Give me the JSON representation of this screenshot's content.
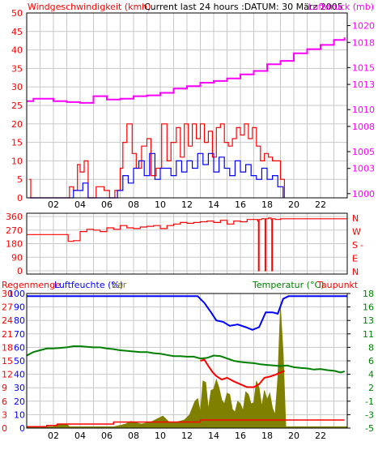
{
  "colors": {
    "frame": "#000000",
    "grid": "#c8c8c8",
    "wind_red": "#ff0000",
    "wind_blue": "#0000ff",
    "pressure": "#ff00ff",
    "direction": "#ff0000",
    "humidity": "#0000ff",
    "temperature": "#008000",
    "dewpoint": "#ff0000",
    "rain": "#808000",
    "rain_total": "#ff0000",
    "label_green": "#008000"
  },
  "chart_data": [
    {
      "type": "line",
      "title": "Current last 24 hours :DATUM: 30 März 2005",
      "left_label": "Windgeschwindigkeit (kmh)",
      "right_label": "Luftdruck (mb)",
      "x_ticks": [
        "02",
        "04",
        "06",
        "08",
        "10",
        "12",
        "14",
        "16",
        "18",
        "20",
        "22"
      ],
      "x_range": [
        0,
        24
      ],
      "y_left_range": [
        0,
        50
      ],
      "y_left_ticks": [
        "0",
        "5",
        "10",
        "15",
        "20",
        "25",
        "30",
        "35",
        "40",
        "45",
        "50"
      ],
      "y_right_range": [
        999.5,
        1021.5
      ],
      "y_right_ticks": [
        "1000",
        "1003",
        "1005",
        "1008",
        "1010",
        "1013",
        "1015",
        "1018",
        "1020"
      ],
      "series": [
        {
          "kind": "wind_gust",
          "x": [
            0.2,
            0.3,
            0.5,
            2.8,
            3.2,
            3.5,
            3.8,
            4.0,
            4.3,
            4.6,
            5.2,
            5.8,
            6.2,
            6.6,
            7.0,
            7.2,
            7.5,
            7.9,
            8.2,
            8.6,
            9.0,
            9.3,
            9.7,
            10.1,
            10.5,
            10.8,
            11.2,
            11.5,
            11.8,
            12.1,
            12.4,
            12.7,
            13.0,
            13.3,
            13.6,
            13.9,
            14.2,
            14.5,
            14.8,
            15.1,
            15.4,
            15.7,
            16.0,
            16.3,
            16.6,
            16.9,
            17.2,
            17.5,
            17.8,
            18.1,
            18.4,
            18.7,
            19.0,
            19.3
          ],
          "values": [
            5,
            0,
            0,
            0,
            3,
            2,
            9,
            7,
            10,
            0,
            3,
            2,
            0,
            2,
            8,
            15,
            20,
            12,
            8,
            14,
            16,
            6,
            8,
            20,
            10,
            15,
            19,
            11,
            20,
            14,
            20,
            16,
            20,
            15,
            18,
            11,
            19,
            20,
            15,
            14,
            16,
            19,
            17,
            20,
            16,
            19,
            14,
            10,
            12,
            11,
            10,
            10,
            5,
            0
          ]
        },
        {
          "kind": "wind_avg",
          "x": [
            0.2,
            0.3,
            2.8,
            3.5,
            4.2,
            4.6,
            5.5,
            6.2,
            6.8,
            7.2,
            7.6,
            8.0,
            8.4,
            8.8,
            9.2,
            9.6,
            10.0,
            10.4,
            10.8,
            11.2,
            11.6,
            12.0,
            12.4,
            12.8,
            13.2,
            13.6,
            14.0,
            14.4,
            14.8,
            15.2,
            15.6,
            16.0,
            16.4,
            16.8,
            17.2,
            17.6,
            18.0,
            18.4,
            18.8,
            19.2
          ],
          "values": [
            0,
            0,
            0,
            2,
            4,
            0,
            0,
            0,
            2,
            6,
            4,
            8,
            10,
            6,
            12,
            5,
            8,
            8,
            6,
            10,
            7,
            10,
            8,
            12,
            9,
            12,
            7,
            11,
            8,
            6,
            10,
            7,
            9,
            6,
            5,
            8,
            5,
            6,
            3,
            0
          ]
        },
        {
          "kind": "pressure",
          "x": [
            0,
            0.5,
            1,
            2,
            3,
            4,
            5,
            6,
            7,
            8,
            9,
            10,
            11,
            12,
            13,
            14,
            15,
            16,
            17,
            18,
            19,
            20,
            21,
            22,
            23,
            23.8
          ],
          "values": [
            1011.0,
            1011.3,
            1011.3,
            1011.0,
            1010.9,
            1010.8,
            1011.6,
            1011.2,
            1011.3,
            1011.6,
            1011.7,
            1012.0,
            1012.5,
            1012.8,
            1013.2,
            1013.4,
            1013.7,
            1014.2,
            1014.6,
            1015.4,
            1015.8,
            1016.7,
            1017.2,
            1017.7,
            1018.3,
            1018.6
          ]
        }
      ]
    },
    {
      "type": "line",
      "x_range": [
        0,
        24
      ],
      "y_left_range": [
        0,
        360
      ],
      "y_left_ticks": [
        "0",
        "90",
        "180",
        "270",
        "360"
      ],
      "right_labels": [
        "N",
        "W",
        "S",
        "E",
        "N"
      ],
      "right_dash": "-",
      "series": [
        {
          "kind": "wind_direction",
          "x": [
            0,
            2.9,
            3.1,
            3.5,
            4.0,
            4.5,
            5.0,
            5.5,
            6.0,
            6.5,
            7.0,
            7.5,
            8.0,
            8.5,
            9.0,
            9.5,
            10.0,
            10.5,
            11.0,
            11.5,
            12.0,
            12.5,
            13.0,
            13.5,
            14.0,
            14.5,
            15.0,
            15.5,
            16.0,
            16.5,
            17.0,
            17.3,
            17.35,
            17.4,
            17.6,
            17.8,
            17.85,
            17.9,
            18.1,
            18.3,
            18.35,
            18.4,
            18.6,
            19.0,
            24
          ],
          "values": [
            240,
            240,
            195,
            200,
            260,
            275,
            270,
            260,
            285,
            275,
            300,
            285,
            280,
            290,
            295,
            300,
            280,
            300,
            310,
            320,
            315,
            320,
            325,
            330,
            320,
            335,
            310,
            330,
            325,
            340,
            340,
            330,
            0,
            340,
            345,
            345,
            0,
            345,
            350,
            340,
            0,
            345,
            340,
            345,
            345
          ]
        }
      ]
    },
    {
      "type": "line",
      "left_label_1": "Regenmenge",
      "left_label_2": "Luftfeuchte (%)",
      "left_label_3": "bar",
      "right_label_1": "Temperatur (°C)",
      "right_label_2": "Taupunkt",
      "x_ticks": [
        "02",
        "04",
        "06",
        "08",
        "10",
        "12",
        "14",
        "16",
        "18",
        "20",
        "22"
      ],
      "x_range": [
        0,
        24
      ],
      "y_left_range": [
        0,
        100
      ],
      "y_left_ticks_humidity": [
        "0",
        "10",
        "20",
        "30",
        "40",
        "50",
        "60",
        "70",
        "80",
        "90",
        "100"
      ],
      "y_left_ticks_rain": [
        "0",
        "3",
        "6",
        "9",
        "12",
        "15",
        "18",
        "21",
        "24",
        "27",
        "30"
      ],
      "y_right_range": [
        -5,
        18
      ],
      "y_right_ticks": [
        "-5",
        "-3",
        "-1",
        "2",
        "4",
        "6",
        "8",
        "11",
        "13",
        "16",
        "18"
      ],
      "series": [
        {
          "kind": "humidity",
          "x": [
            0,
            10,
            12,
            12.8,
            13.3,
            13.8,
            14.2,
            14.7,
            15.2,
            15.8,
            16.4,
            16.9,
            17.4,
            17.9,
            18.4,
            18.8,
            19.2,
            19.6,
            24
          ],
          "values": [
            98,
            98,
            98,
            98,
            93,
            86,
            80,
            79,
            76,
            77,
            75,
            73,
            75,
            86,
            86,
            85,
            96,
            98,
            98
          ]
        },
        {
          "kind": "temperature",
          "x": [
            0,
            0.5,
            1,
            1.5,
            2,
            2.5,
            3,
            3.5,
            4,
            4.5,
            5,
            5.5,
            6,
            6.5,
            7,
            7.5,
            8,
            8.5,
            9,
            9.5,
            10,
            10.5,
            11,
            11.5,
            12,
            12.5,
            13,
            13.5,
            14,
            14.5,
            15,
            15.5,
            16,
            16.5,
            17,
            17.5,
            18,
            18.5,
            19,
            19.5,
            20,
            20.5,
            21,
            21.5,
            22,
            22.5,
            23,
            23.5,
            23.8
          ],
          "values": [
            7.4,
            8.0,
            8.3,
            8.6,
            8.6,
            8.7,
            8.8,
            9.0,
            9.0,
            8.9,
            8.8,
            8.8,
            8.6,
            8.5,
            8.3,
            8.2,
            8.1,
            8.0,
            8.0,
            7.8,
            7.7,
            7.5,
            7.3,
            7.3,
            7.2,
            7.2,
            6.9,
            7.0,
            7.4,
            7.3,
            6.9,
            6.5,
            6.3,
            6.2,
            6.1,
            5.9,
            5.8,
            5.7,
            5.6,
            5.7,
            5.4,
            5.3,
            5.2,
            5.0,
            5.1,
            4.9,
            4.8,
            4.5,
            4.7
          ]
        },
        {
          "kind": "dewpoint",
          "x": [
            13.0,
            13.3,
            13.6,
            13.9,
            14.2,
            14.6,
            15.0,
            15.5,
            16.0,
            16.5,
            17.0,
            17.4,
            17.8,
            18.2,
            18.6,
            19.0,
            19.3
          ],
          "values": [
            6.5,
            6.7,
            5.6,
            4.6,
            3.9,
            3.3,
            3.6,
            3.0,
            2.5,
            2.0,
            2.0,
            2.5,
            3.6,
            3.8,
            4.1,
            4.5,
            4.8
          ]
        },
        {
          "kind": "rain_rate",
          "x": [
            0,
            2.0,
            2.3,
            3.0,
            3.2,
            6.5,
            7.0,
            7.4,
            7.8,
            8.2,
            8.6,
            9.0,
            9.4,
            9.8,
            10.2,
            10.6,
            11.0,
            11.4,
            11.8,
            12.2,
            12.6,
            12.8,
            13.0,
            13.2,
            13.4,
            13.6,
            13.8,
            14.0,
            14.2,
            14.4,
            14.6,
            14.8,
            15.0,
            15.2,
            15.4,
            15.6,
            15.8,
            16.0,
            16.2,
            16.4,
            16.6,
            16.8,
            17.0,
            17.2,
            17.4,
            17.6,
            17.8,
            18.0,
            18.2,
            18.4,
            18.6,
            18.8,
            19.0,
            19.2,
            19.4,
            24
          ],
          "values": [
            1,
            1,
            3,
            3,
            1,
            1,
            2,
            3,
            5,
            4,
            3,
            4,
            5,
            7,
            9,
            5,
            4,
            5,
            6,
            10,
            20,
            22,
            12,
            35,
            34,
            14,
            28,
            29,
            36,
            30,
            21,
            18,
            26,
            25,
            14,
            12,
            20,
            18,
            13,
            27,
            25,
            18,
            19,
            35,
            30,
            16,
            28,
            21,
            26,
            15,
            10,
            37,
            90,
            56,
            1,
            1
          ]
        },
        {
          "kind": "rain_total",
          "x": [
            0,
            1.3,
            1.5,
            2.0,
            2.3,
            3.2,
            6.3,
            6.5,
            12.8,
            13.0,
            19.5,
            23.8
          ],
          "values": [
            1,
            1,
            2,
            2,
            3,
            3,
            3,
            4.5,
            4.5,
            6,
            6,
            6
          ]
        }
      ]
    }
  ]
}
